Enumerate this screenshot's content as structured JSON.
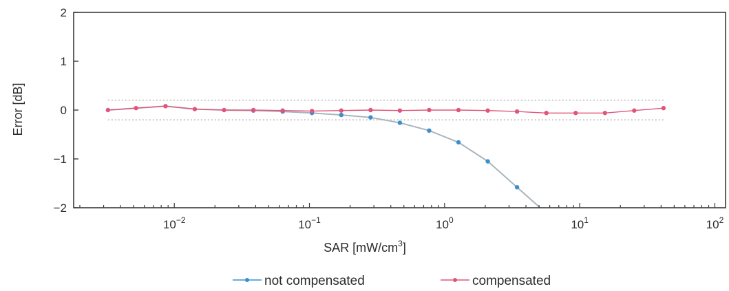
{
  "chart_data": {
    "type": "line",
    "title": "",
    "xlabel": "SAR [mW/cm",
    "xlabel_sup": "3",
    "xlabel_suffix": "]",
    "ylabel": "Error [dB]",
    "xscale": "log",
    "xlim": [
      0.0018,
      120
    ],
    "ylim": [
      -2,
      2
    ],
    "yticks": [
      2,
      1,
      0,
      -1,
      -2
    ],
    "ytick_labels": [
      "2",
      "1",
      "0",
      "−1",
      "−2"
    ],
    "xticks": [
      0.01,
      0.1,
      1,
      10,
      100
    ],
    "xtick_bases": [
      "10",
      "10",
      "10",
      "10",
      "10"
    ],
    "xtick_exponents": [
      "−2",
      "−1",
      "0",
      "1",
      "2"
    ],
    "tolerance_band": [
      -0.2,
      0.2
    ],
    "grid": false,
    "legend_position": "bottom",
    "series": [
      {
        "name": "not compensated",
        "color": "#3a8fd0",
        "x": [
          0.00323,
          0.00521,
          0.00861,
          0.01418,
          0.02335,
          0.03848,
          0.06338,
          0.1044,
          0.172,
          0.2834,
          0.4668,
          0.7689,
          1.267,
          2.087,
          3.438,
          5.1
        ],
        "y": [
          0.0,
          0.04,
          0.08,
          0.02,
          0.0,
          -0.01,
          -0.03,
          -0.06,
          -0.1,
          -0.15,
          -0.26,
          -0.42,
          -0.66,
          -1.05,
          -1.58,
          -2.0
        ],
        "markers": [
          false,
          false,
          false,
          false,
          false,
          true,
          true,
          true,
          true,
          true,
          true,
          true,
          true,
          true,
          true,
          false
        ]
      },
      {
        "name": "compensated",
        "color": "#e0557a",
        "x": [
          0.00323,
          0.00521,
          0.00861,
          0.01418,
          0.02335,
          0.03848,
          0.06338,
          0.1044,
          0.172,
          0.2834,
          0.4668,
          0.7689,
          1.267,
          2.087,
          3.438,
          5.664,
          9.33,
          15.37,
          25.31,
          41.7
        ],
        "y": [
          0.0,
          0.04,
          0.08,
          0.02,
          0.0,
          0.0,
          -0.01,
          -0.02,
          -0.01,
          0.0,
          -0.01,
          0.0,
          0.0,
          -0.01,
          -0.03,
          -0.06,
          -0.06,
          -0.06,
          -0.01,
          0.04
        ]
      }
    ]
  }
}
